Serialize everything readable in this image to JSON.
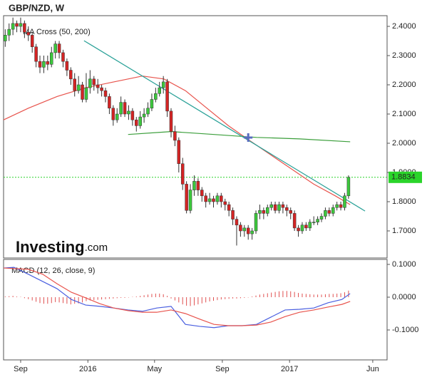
{
  "chart_data": [
    {
      "type": "candlestick",
      "title": "GBP/NZD, W",
      "indicator": "MA Cross (50, 200)",
      "watermark": [
        "Investing",
        ".com"
      ],
      "x": [
        -28,
        -21,
        -14,
        -7,
        0,
        7,
        14,
        21,
        28,
        35,
        42,
        49,
        56,
        63,
        70,
        77,
        84,
        91,
        98,
        105,
        112,
        119,
        126,
        133,
        140,
        147,
        154,
        161,
        168,
        175,
        182,
        189,
        196,
        203,
        210,
        217,
        224,
        231,
        238,
        245,
        252,
        259,
        266,
        273,
        280,
        287,
        294,
        301,
        308,
        315,
        322,
        329,
        336,
        343,
        350,
        357,
        364,
        371,
        378,
        385,
        392,
        399,
        406,
        413,
        420,
        427,
        434,
        441,
        448,
        455,
        462,
        469,
        476,
        483,
        490,
        497,
        504,
        511,
        518,
        525,
        532,
        539,
        546,
        553,
        560,
        567,
        574,
        581,
        588,
        595
      ],
      "open": [
        2.35,
        2.37,
        2.39,
        2.41,
        2.4,
        2.41,
        2.38,
        2.37,
        2.33,
        2.28,
        2.26,
        2.28,
        2.27,
        2.31,
        2.34,
        2.31,
        2.28,
        2.25,
        2.22,
        2.18,
        2.2,
        2.15,
        2.19,
        2.22,
        2.2,
        2.19,
        2.18,
        2.16,
        2.12,
        2.08,
        2.1,
        2.14,
        2.1,
        2.11,
        2.08,
        2.06,
        2.09,
        2.1,
        2.12,
        2.15,
        2.17,
        2.19,
        2.21,
        2.11,
        2.04,
        2.01,
        1.93,
        1.86,
        1.77,
        1.84,
        1.87,
        1.84,
        1.82,
        1.8,
        1.81,
        1.8,
        1.82,
        1.8,
        1.79,
        1.77,
        1.74,
        1.72,
        1.7,
        1.71,
        1.69,
        1.7,
        1.76,
        1.77,
        1.76,
        1.78,
        1.79,
        1.77,
        1.79,
        1.78,
        1.77,
        1.76,
        1.71,
        1.7,
        1.72,
        1.71,
        1.73,
        1.73,
        1.74,
        1.75,
        1.77,
        1.76,
        1.78,
        1.79,
        1.78,
        1.82
      ],
      "high": [
        2.39,
        2.41,
        2.43,
        2.42,
        2.43,
        2.42,
        2.4,
        2.38,
        2.34,
        2.3,
        2.3,
        2.3,
        2.33,
        2.35,
        2.35,
        2.32,
        2.29,
        2.26,
        2.24,
        2.23,
        2.21,
        2.24,
        2.25,
        2.23,
        2.22,
        2.2,
        2.19,
        2.17,
        2.13,
        2.12,
        2.16,
        2.15,
        2.13,
        2.12,
        2.09,
        2.11,
        2.12,
        2.14,
        2.17,
        2.19,
        2.21,
        2.23,
        2.22,
        2.12,
        2.06,
        2.02,
        1.95,
        1.87,
        1.86,
        1.89,
        1.88,
        1.85,
        1.83,
        1.83,
        1.82,
        1.83,
        1.83,
        1.81,
        1.8,
        1.78,
        1.75,
        1.73,
        1.72,
        1.72,
        1.71,
        1.77,
        1.79,
        1.78,
        1.79,
        1.8,
        1.8,
        1.8,
        1.8,
        1.79,
        1.78,
        1.77,
        1.72,
        1.73,
        1.73,
        1.74,
        1.75,
        1.75,
        1.76,
        1.78,
        1.78,
        1.79,
        1.8,
        1.8,
        1.83,
        1.89
      ],
      "low": [
        2.33,
        2.35,
        2.37,
        2.38,
        2.38,
        2.36,
        2.35,
        2.31,
        2.26,
        2.24,
        2.24,
        2.25,
        2.26,
        2.29,
        2.29,
        2.26,
        2.23,
        2.2,
        2.16,
        2.17,
        2.14,
        2.14,
        2.17,
        2.18,
        2.17,
        2.16,
        2.14,
        2.1,
        2.06,
        2.07,
        2.09,
        2.09,
        2.08,
        2.06,
        2.04,
        2.05,
        2.07,
        2.09,
        2.11,
        2.14,
        2.16,
        2.17,
        2.09,
        2.02,
        1.99,
        1.9,
        1.84,
        1.76,
        1.76,
        1.82,
        1.82,
        1.8,
        1.78,
        1.79,
        1.78,
        1.79,
        1.78,
        1.77,
        1.75,
        1.72,
        1.65,
        1.68,
        1.68,
        1.67,
        1.67,
        1.69,
        1.74,
        1.74,
        1.75,
        1.77,
        1.76,
        1.76,
        1.76,
        1.75,
        1.74,
        1.7,
        1.68,
        1.69,
        1.7,
        1.7,
        1.72,
        1.72,
        1.73,
        1.74,
        1.75,
        1.75,
        1.77,
        1.77,
        1.77,
        1.81
      ],
      "close": [
        2.37,
        2.39,
        2.41,
        2.4,
        2.41,
        2.38,
        2.37,
        2.33,
        2.28,
        2.26,
        2.28,
        2.27,
        2.31,
        2.34,
        2.31,
        2.28,
        2.25,
        2.22,
        2.18,
        2.2,
        2.15,
        2.19,
        2.22,
        2.2,
        2.19,
        2.18,
        2.16,
        2.12,
        2.08,
        2.1,
        2.14,
        2.1,
        2.11,
        2.08,
        2.06,
        2.09,
        2.1,
        2.12,
        2.15,
        2.17,
        2.19,
        2.21,
        2.11,
        2.04,
        2.01,
        1.93,
        1.86,
        1.77,
        1.84,
        1.87,
        1.84,
        1.82,
        1.8,
        1.81,
        1.8,
        1.82,
        1.8,
        1.79,
        1.77,
        1.74,
        1.72,
        1.7,
        1.71,
        1.69,
        1.7,
        1.76,
        1.77,
        1.76,
        1.78,
        1.79,
        1.77,
        1.79,
        1.78,
        1.77,
        1.76,
        1.71,
        1.7,
        1.72,
        1.71,
        1.73,
        1.73,
        1.74,
        1.75,
        1.77,
        1.76,
        1.78,
        1.79,
        1.78,
        1.82,
        1.8834
      ],
      "up_color": "#3cc83c",
      "down_color": "#d42424",
      "lines": [
        {
          "color": "#e8534c",
          "x": [
            -31,
            14,
            66,
            118,
            169,
            221,
            260,
            299,
            338,
            377,
            415,
            454,
            493,
            532,
            571,
            598
          ],
          "values": [
            2.08,
            2.12,
            2.16,
            2.19,
            2.21,
            2.23,
            2.22,
            2.18,
            2.12,
            2.06,
            2.01,
            1.96,
            1.91,
            1.86,
            1.82,
            1.79
          ]
        },
        {
          "color": "#3a9e3a",
          "x": [
            195,
            273,
            351,
            428,
            506,
            598
          ],
          "values": [
            2.03,
            2.04,
            2.03,
            2.02,
            2.015,
            2.005
          ]
        },
        {
          "color": "#2aa198",
          "x": [
            115,
            625
          ],
          "values": [
            2.351,
            1.768
          ]
        }
      ],
      "marker": {
        "x": 413,
        "value": 2.0195,
        "color": "#5a6cc0"
      },
      "last_price": {
        "value": 1.8834,
        "label": "1.8834",
        "color": "#2ad42a"
      },
      "xlim": [
        -31,
        665
      ],
      "xticks": [
        {
          "value": 0,
          "label": "Sep"
        },
        {
          "value": 122,
          "label": "2016"
        },
        {
          "value": 243,
          "label": "May"
        },
        {
          "value": 366,
          "label": "Sep"
        },
        {
          "value": 488,
          "label": "2017"
        },
        {
          "value": 639,
          "label": "Jun"
        }
      ],
      "ylim": [
        1.6073,
        2.4366
      ],
      "yticks": [
        {
          "value": 2.4,
          "label": "2.4000"
        },
        {
          "value": 2.3,
          "label": "2.3000"
        },
        {
          "value": 2.2,
          "label": "2.2000"
        },
        {
          "value": 2.1,
          "label": "2.1000"
        },
        {
          "value": 2.0,
          "label": "2.0000"
        },
        {
          "value": 1.9,
          "label": "1.9000"
        },
        {
          "value": 1.8,
          "label": "1.8000"
        },
        {
          "value": 1.7,
          "label": "1.7000"
        }
      ]
    },
    {
      "type": "macd",
      "title": "MACD (12, 26, close, 9)",
      "series": [
        {
          "color": "#4a5fe0",
          "x": [
            -31,
            -12,
            14,
            40,
            66,
            92,
            118,
            144,
            169,
            195,
            221,
            247,
            273,
            299,
            325,
            351,
            377,
            402,
            428,
            454,
            480,
            506,
            532,
            558,
            583,
            598
          ],
          "values": [
            0.089,
            0.091,
            0.07,
            0.048,
            0.026,
            -0.007,
            -0.024,
            -0.028,
            -0.033,
            -0.039,
            -0.043,
            -0.033,
            -0.028,
            -0.083,
            -0.089,
            -0.093,
            -0.087,
            -0.087,
            -0.083,
            -0.061,
            -0.039,
            -0.037,
            -0.033,
            -0.017,
            -0.007,
            0.011
          ]
        },
        {
          "color": "#e8534c",
          "x": [
            -31,
            14,
            40,
            66,
            92,
            118,
            144,
            169,
            195,
            221,
            247,
            273,
            299,
            325,
            351,
            377,
            402,
            428,
            454,
            480,
            506,
            532,
            558,
            583,
            598
          ],
          "values": [
            0.089,
            0.085,
            0.07,
            0.041,
            0.015,
            -0.002,
            -0.02,
            -0.033,
            -0.041,
            -0.046,
            -0.046,
            -0.039,
            -0.05,
            -0.067,
            -0.083,
            -0.087,
            -0.087,
            -0.085,
            -0.076,
            -0.059,
            -0.046,
            -0.039,
            -0.03,
            -0.022,
            -0.013
          ]
        }
      ],
      "histogram": {
        "color": "#e05050",
        "values": [
          0.002,
          0.003,
          0.004,
          0.002,
          0.001,
          -0.003,
          -0.006,
          -0.01,
          -0.014,
          -0.018,
          -0.02,
          -0.02,
          -0.018,
          -0.015,
          -0.016,
          -0.018,
          -0.02,
          -0.022,
          -0.02,
          -0.019,
          -0.016,
          -0.012,
          -0.01,
          -0.009,
          -0.008,
          -0.007,
          -0.006,
          -0.005,
          -0.004,
          -0.003,
          -0.002,
          -0.002,
          -0.001,
          0.001,
          0.002,
          0.004,
          0.006,
          0.008,
          0.01,
          0.011,
          0.011,
          0.009,
          0.004,
          -0.004,
          -0.01,
          -0.016,
          -0.022,
          -0.026,
          -0.027,
          -0.025,
          -0.022,
          -0.019,
          -0.016,
          -0.013,
          -0.011,
          -0.009,
          -0.007,
          -0.006,
          -0.005,
          -0.004,
          -0.004,
          -0.003,
          -0.002,
          -0.001,
          0.002,
          0.005,
          0.008,
          0.01,
          0.012,
          0.014,
          0.016,
          0.018,
          0.019,
          0.019,
          0.018,
          0.016,
          0.013,
          0.011,
          0.01,
          0.009,
          0.008,
          0.008,
          0.008,
          0.009,
          0.01,
          0.01,
          0.011,
          0.012,
          0.015,
          0.02
        ]
      },
      "ylim": [
        -0.1913,
        0.1152
      ],
      "yticks": [
        {
          "value": 0.1,
          "label": "0.1000"
        },
        {
          "value": 0,
          "label": "0.0000"
        },
        {
          "value": -0.1,
          "label": "-0.1000"
        }
      ]
    }
  ]
}
